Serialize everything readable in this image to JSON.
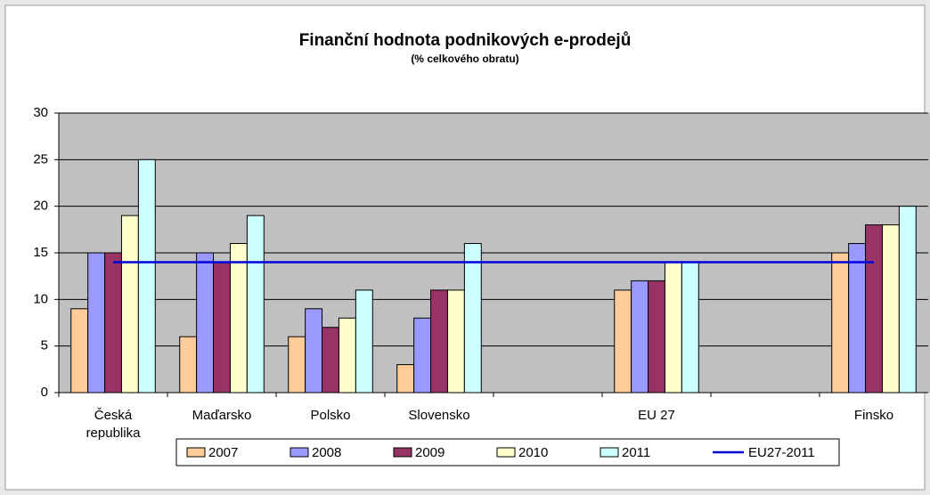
{
  "chart_data": {
    "type": "bar",
    "title": "Finanční hodnota podnikových e-prodejů",
    "subtitle": "(% celkového obratu)",
    "categories": [
      "Česká republika",
      "Maďarsko",
      "Polsko",
      "Slovensko",
      null,
      "EU 27",
      null,
      "Finsko"
    ],
    "series": [
      {
        "name": "2007",
        "color": "#ffcc99",
        "values": [
          9,
          6,
          6,
          3,
          null,
          11,
          null,
          15
        ]
      },
      {
        "name": "2008",
        "color": "#9999ff",
        "values": [
          15,
          15,
          9,
          8,
          null,
          12,
          null,
          16
        ]
      },
      {
        "name": "2009",
        "color": "#993366",
        "values": [
          15,
          14,
          7,
          11,
          null,
          12,
          null,
          18
        ]
      },
      {
        "name": "2010",
        "color": "#ffffcc",
        "values": [
          19,
          16,
          8,
          11,
          null,
          14,
          null,
          18
        ]
      },
      {
        "name": "2011",
        "color": "#ccffff",
        "values": [
          25,
          19,
          11,
          16,
          null,
          14,
          null,
          20
        ]
      },
      {
        "name": "EU27-2011",
        "type": "line",
        "color": "#0000dd",
        "values": [
          14,
          14,
          14,
          14,
          14,
          14,
          14,
          14
        ]
      }
    ],
    "ylim": [
      0,
      30
    ],
    "yticks": [
      0,
      5,
      10,
      15,
      20,
      25,
      30
    ],
    "grid": true
  }
}
